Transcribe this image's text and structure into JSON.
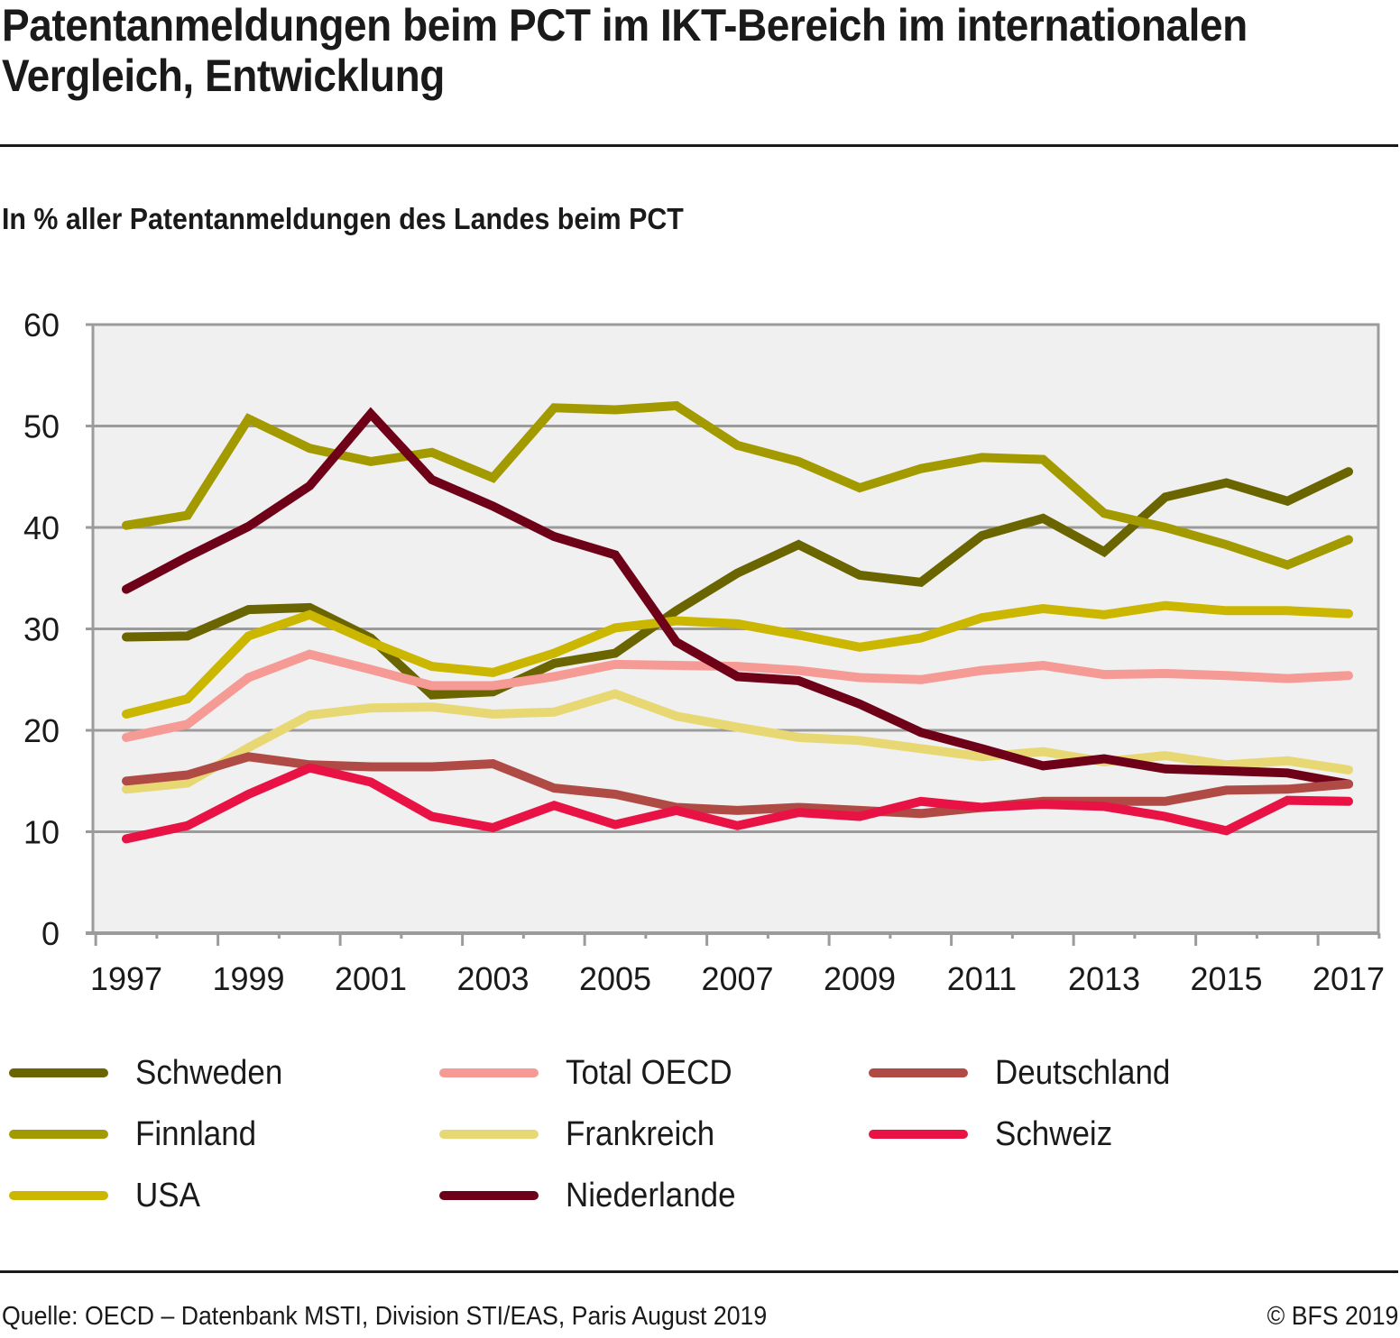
{
  "header": {
    "title": "Patentanmeldungen beim PCT im IKT-Bereich im internationalen Vergleich, Entwicklung",
    "subtitle": "In % aller Patentanmeldungen des Landes beim PCT"
  },
  "footer": {
    "source": "Quelle: OECD – Datenbank MSTI, Division STI/EAS, Paris August 2019",
    "copyright": "© BFS 2019"
  },
  "chart_data": {
    "type": "line",
    "title": "Patentanmeldungen beim PCT im IKT-Bereich im internationalen Vergleich, Entwicklung",
    "subtitle": "In % aller Patentanmeldungen des Landes beim PCT",
    "xlabel": "",
    "ylabel": "",
    "ylim": [
      0,
      60
    ],
    "yticks": [
      "0",
      "10",
      "20",
      "30",
      "40",
      "50",
      "60"
    ],
    "yticks_values": [
      0,
      10,
      20,
      30,
      40,
      50,
      60
    ],
    "x": [
      1997,
      1998,
      1999,
      2000,
      2001,
      2002,
      2003,
      2004,
      2005,
      2006,
      2007,
      2008,
      2009,
      2010,
      2011,
      2012,
      2013,
      2014,
      2015,
      2016,
      2017
    ],
    "xticks": [
      "1997",
      "1999",
      "2001",
      "2003",
      "2005",
      "2007",
      "2009",
      "2011",
      "2013",
      "2015",
      "2017"
    ],
    "xticks_values": [
      1997,
      1999,
      2001,
      2003,
      2005,
      2007,
      2009,
      2011,
      2013,
      2015,
      2017
    ],
    "grid": true,
    "plot_background": "#f0f0f0",
    "legend_position": "bottom",
    "series": [
      {
        "name": "Schweden",
        "color": "#6b6500",
        "values": [
          29.2,
          29.3,
          31.9,
          32.1,
          29.1,
          23.5,
          23.8,
          26.6,
          27.6,
          31.8,
          35.5,
          38.3,
          35.3,
          34.6,
          39.2,
          40.9,
          37.6,
          43.0,
          44.4,
          42.6,
          45.5
        ]
      },
      {
        "name": "Finnland",
        "color": "#a39a00",
        "values": [
          40.2,
          41.2,
          50.7,
          47.8,
          46.5,
          47.4,
          44.9,
          51.8,
          51.6,
          52.0,
          48.1,
          46.5,
          43.9,
          45.8,
          46.9,
          46.7,
          41.4,
          40.0,
          38.3,
          36.3,
          38.8
        ]
      },
      {
        "name": "USA",
        "color": "#cbb700",
        "values": [
          21.6,
          23.1,
          29.3,
          31.4,
          28.7,
          26.3,
          25.7,
          27.6,
          30.1,
          30.8,
          30.5,
          29.4,
          28.2,
          29.1,
          31.1,
          32.0,
          31.4,
          32.3,
          31.8,
          31.8,
          31.5
        ]
      },
      {
        "name": "Total OECD",
        "color": "#f59a94",
        "values": [
          19.3,
          20.6,
          25.2,
          27.5,
          26.0,
          24.4,
          24.4,
          25.3,
          26.5,
          26.4,
          26.3,
          25.9,
          25.2,
          25.0,
          25.9,
          26.4,
          25.5,
          25.6,
          25.4,
          25.1,
          25.4
        ]
      },
      {
        "name": "Frankreich",
        "color": "#e8d873",
        "values": [
          14.2,
          14.8,
          18.3,
          21.5,
          22.2,
          22.3,
          21.6,
          21.8,
          23.6,
          21.4,
          20.3,
          19.3,
          19.0,
          18.2,
          17.4,
          17.9,
          16.9,
          17.5,
          16.6,
          17.0,
          16.1
        ]
      },
      {
        "name": "Niederlande",
        "color": "#6e0018",
        "values": [
          33.9,
          37.1,
          40.1,
          44.1,
          51.2,
          44.7,
          42.1,
          39.1,
          37.3,
          28.7,
          25.3,
          24.9,
          22.6,
          19.8,
          18.2,
          16.5,
          17.2,
          16.2,
          16.0,
          15.8,
          14.7
        ]
      },
      {
        "name": "Deutschland",
        "color": "#b04a45",
        "values": [
          15.0,
          15.6,
          17.4,
          16.6,
          16.4,
          16.4,
          16.7,
          14.3,
          13.7,
          12.4,
          12.1,
          12.4,
          12.1,
          11.8,
          12.4,
          13.0,
          13.0,
          13.0,
          14.1,
          14.2,
          14.7
        ]
      },
      {
        "name": "Schweiz",
        "color": "#e81244",
        "values": [
          9.3,
          10.6,
          13.7,
          16.3,
          14.9,
          11.5,
          10.4,
          12.6,
          10.7,
          12.1,
          10.6,
          11.9,
          11.5,
          13.0,
          12.4,
          12.7,
          12.5,
          11.5,
          10.1,
          13.1,
          13.0
        ]
      }
    ],
    "legend_order": [
      "Schweden",
      "Total OECD",
      "Deutschland",
      "Finnland",
      "Frankreich",
      "Schweiz",
      "USA",
      "Niederlande"
    ]
  }
}
